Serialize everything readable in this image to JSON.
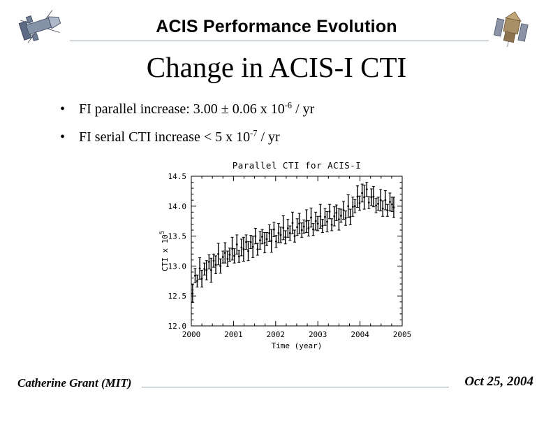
{
  "header": {
    "title": "ACIS Performance Evolution"
  },
  "slide": {
    "title": "Change in ACIS-I CTI",
    "bullets": [
      {
        "marker": "•",
        "text": "FI parallel increase: 3.00 ± 0.06 x 10",
        "sup": "-6",
        "tail": " / yr"
      },
      {
        "marker": "•",
        "text": "FI serial CTI increase < 5 x 10",
        "sup": "-7",
        "tail": " / yr"
      }
    ]
  },
  "footer": {
    "author": "Catherine Grant (MIT)",
    "date": "Oct 25, 2004"
  },
  "icons": {
    "left": "chandra-spacecraft-icon",
    "right": "chandra-spacecraft-icon"
  },
  "chart_data": {
    "type": "scatter",
    "title": "Parallel CTI for ACIS-I",
    "xlabel": "Time (year)",
    "ylabel": "CTI x 10",
    "ylabel_exponent": "5",
    "xlim": [
      2000,
      2005
    ],
    "ylim": [
      12.0,
      14.5
    ],
    "x_ticks": [
      2000,
      2001,
      2002,
      2003,
      2004,
      2005
    ],
    "x_tick_labels": [
      "2000",
      "2001",
      "2002",
      "2003",
      "2004",
      "2005"
    ],
    "y_ticks": [
      12.0,
      12.5,
      13.0,
      13.5,
      14.0,
      14.5
    ],
    "y_tick_labels": [
      "12.0",
      "12.5",
      "13.0",
      "13.5",
      "14.0",
      "14.5"
    ],
    "x_minor_step": 0.25,
    "y_minor_step": 0.1,
    "grid": false,
    "legend": false,
    "marker": "point-with-error-bars",
    "color": "#000000",
    "points": [
      [
        2000.03,
        12.54,
        0.15
      ],
      [
        2000.09,
        12.84,
        0.12
      ],
      [
        2000.14,
        12.75,
        0.1
      ],
      [
        2000.2,
        12.96,
        0.18
      ],
      [
        2000.25,
        12.79,
        0.14
      ],
      [
        2000.31,
        12.95,
        0.1
      ],
      [
        2000.36,
        12.93,
        0.16
      ],
      [
        2000.42,
        13.07,
        0.12
      ],
      [
        2000.47,
        12.93,
        0.2
      ],
      [
        2000.53,
        13.09,
        0.11
      ],
      [
        2000.58,
        13.02,
        0.15
      ],
      [
        2000.64,
        13.2,
        0.18
      ],
      [
        2000.69,
        13.0,
        0.12
      ],
      [
        2000.75,
        13.15,
        0.1
      ],
      [
        2000.8,
        13.22,
        0.17
      ],
      [
        2000.86,
        13.12,
        0.13
      ],
      [
        2000.91,
        13.19,
        0.11
      ],
      [
        2000.97,
        13.29,
        0.19
      ],
      [
        2001.02,
        13.17,
        0.12
      ],
      [
        2001.08,
        13.36,
        0.16
      ],
      [
        2001.13,
        13.16,
        0.1
      ],
      [
        2001.19,
        13.31,
        0.14
      ],
      [
        2001.24,
        13.28,
        0.2
      ],
      [
        2001.3,
        13.4,
        0.12
      ],
      [
        2001.35,
        13.25,
        0.16
      ],
      [
        2001.41,
        13.4,
        0.11
      ],
      [
        2001.46,
        13.32,
        0.18
      ],
      [
        2001.52,
        13.5,
        0.13
      ],
      [
        2001.57,
        13.28,
        0.1
      ],
      [
        2001.63,
        13.43,
        0.15
      ],
      [
        2001.68,
        13.49,
        0.12
      ],
      [
        2001.74,
        13.39,
        0.17
      ],
      [
        2001.79,
        13.45,
        0.11
      ],
      [
        2001.85,
        13.55,
        0.14
      ],
      [
        2001.9,
        13.42,
        0.19
      ],
      [
        2001.96,
        13.61,
        0.12
      ],
      [
        2002.01,
        13.41,
        0.1
      ],
      [
        2002.07,
        13.55,
        0.16
      ],
      [
        2002.12,
        13.52,
        0.13
      ],
      [
        2002.18,
        13.64,
        0.2
      ],
      [
        2002.23,
        13.48,
        0.11
      ],
      [
        2002.29,
        13.63,
        0.15
      ],
      [
        2002.34,
        13.55,
        0.12
      ],
      [
        2002.4,
        13.72,
        0.18
      ],
      [
        2002.45,
        13.5,
        0.1
      ],
      [
        2002.51,
        13.65,
        0.14
      ],
      [
        2002.56,
        13.71,
        0.17
      ],
      [
        2002.62,
        13.6,
        0.12
      ],
      [
        2002.67,
        13.66,
        0.11
      ],
      [
        2002.73,
        13.75,
        0.19
      ],
      [
        2002.78,
        13.63,
        0.13
      ],
      [
        2002.84,
        13.81,
        0.16
      ],
      [
        2002.89,
        13.61,
        0.1
      ],
      [
        2002.95,
        13.75,
        0.15
      ],
      [
        2003.0,
        13.71,
        0.12
      ],
      [
        2003.06,
        13.83,
        0.2
      ],
      [
        2003.11,
        13.67,
        0.11
      ],
      [
        2003.17,
        13.82,
        0.14
      ],
      [
        2003.22,
        13.74,
        0.17
      ],
      [
        2003.28,
        13.91,
        0.12
      ],
      [
        2003.33,
        13.69,
        0.1
      ],
      [
        2003.39,
        13.83,
        0.16
      ],
      [
        2003.44,
        13.89,
        0.13
      ],
      [
        2003.5,
        13.78,
        0.18
      ],
      [
        2003.55,
        13.84,
        0.11
      ],
      [
        2003.61,
        13.93,
        0.15
      ],
      [
        2003.66,
        13.8,
        0.12
      ],
      [
        2003.72,
        14.0,
        0.19
      ],
      [
        2003.77,
        13.82,
        0.13
      ],
      [
        2003.83,
        13.99,
        0.16
      ],
      [
        2003.88,
        14.0,
        0.11
      ],
      [
        2003.94,
        14.16,
        0.18
      ],
      [
        2003.99,
        14.05,
        0.12
      ],
      [
        2004.05,
        14.22,
        0.15
      ],
      [
        2004.1,
        14.15,
        0.2
      ],
      [
        2004.16,
        14.28,
        0.12
      ],
      [
        2004.21,
        14.06,
        0.1
      ],
      [
        2004.27,
        14.15,
        0.14
      ],
      [
        2004.32,
        14.16,
        0.17
      ],
      [
        2004.38,
        14.01,
        0.12
      ],
      [
        2004.43,
        14.04,
        0.11
      ],
      [
        2004.49,
        14.1,
        0.18
      ],
      [
        2004.54,
        13.96,
        0.13
      ],
      [
        2004.6,
        14.1,
        0.16
      ],
      [
        2004.65,
        13.93,
        0.1
      ],
      [
        2004.71,
        14.07,
        0.15
      ],
      [
        2004.76,
        14.03,
        0.12
      ],
      [
        2004.8,
        13.98,
        0.17
      ]
    ]
  }
}
